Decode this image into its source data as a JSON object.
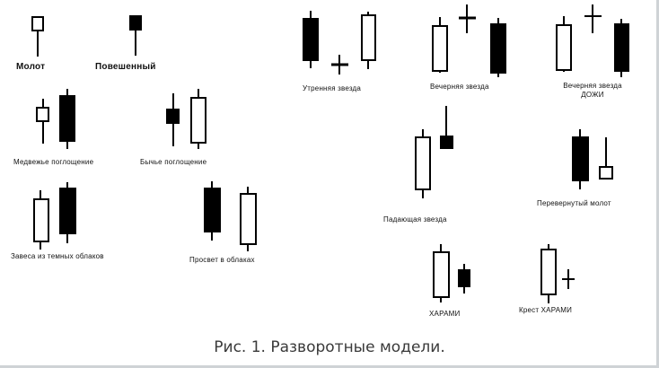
{
  "labels": {
    "hammer": "Молот",
    "hanging_man": "Повешенный",
    "morning_star": "Утренняя звезда",
    "evening_star": "Вечерняя звезда",
    "evening_doji_star_line1": "Вечерняя звезда",
    "evening_doji_star_line2": "ДОЖИ",
    "bearish_engulfing": "Медвежье поглощение",
    "bullish_engulfing": "Бычье поглощение",
    "shooting_star": "Падающая звезда",
    "inverted_hammer": "Перевернутый молот",
    "dark_cloud_cover": "Завеса из темных облаков",
    "piercing": "Просвет в облаках",
    "harami": "ХАРАМИ",
    "harami_cross": "Крест ХАРАМИ"
  },
  "caption": "Рис. 1. Разворотные модели.",
  "colors": {
    "ink": "#000000",
    "paper": "#ffffff",
    "border": "#cfd3d6",
    "caption": "#3a3a3a"
  }
}
